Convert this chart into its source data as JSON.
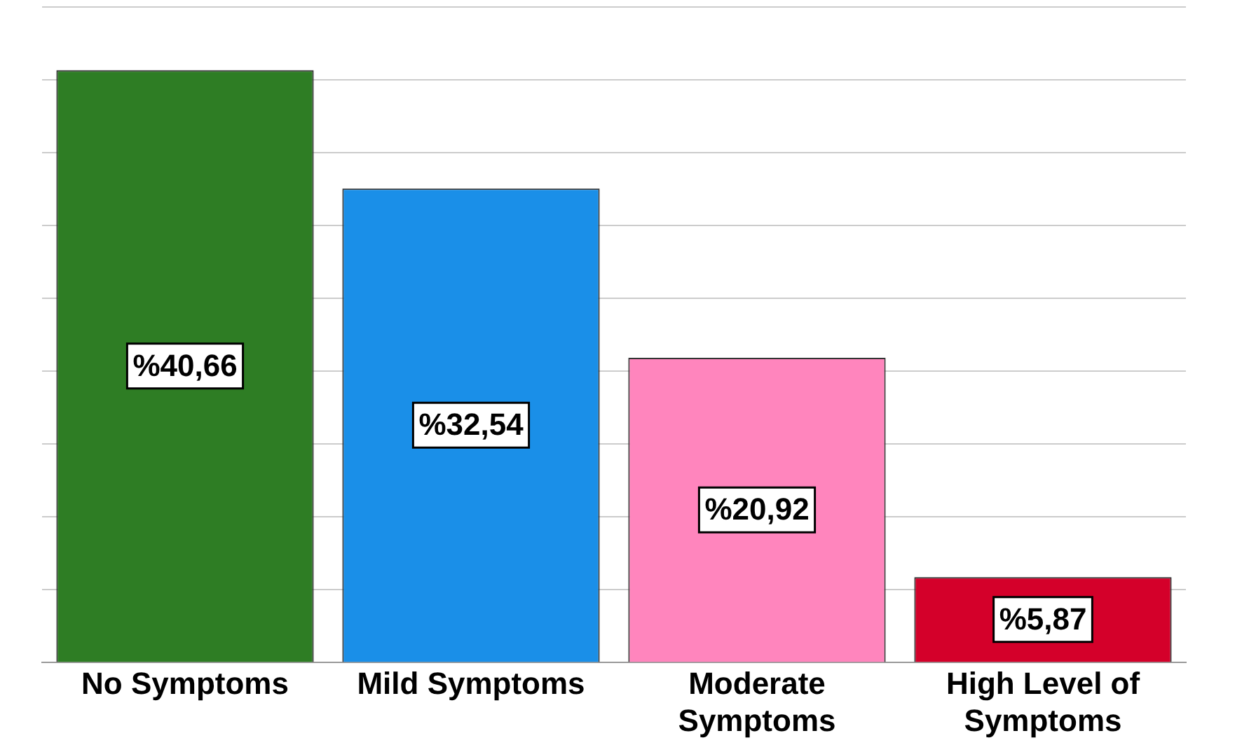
{
  "chart_data": {
    "type": "bar",
    "categories": [
      "No Symptoms",
      "Mild Symptoms",
      "Moderate Symptoms",
      "High Level of Symptoms"
    ],
    "values": [
      40.66,
      32.54,
      20.92,
      5.87
    ],
    "colors": [
      "#2e7d24",
      "#1a8fe8",
      "#ff85bd",
      "#d4002a"
    ],
    "value_labels": [
      "%40,66",
      "%32,54",
      "%20,92",
      "%5,87"
    ],
    "grid": "y",
    "tick_labels": "x",
    "legend": false
  }
}
